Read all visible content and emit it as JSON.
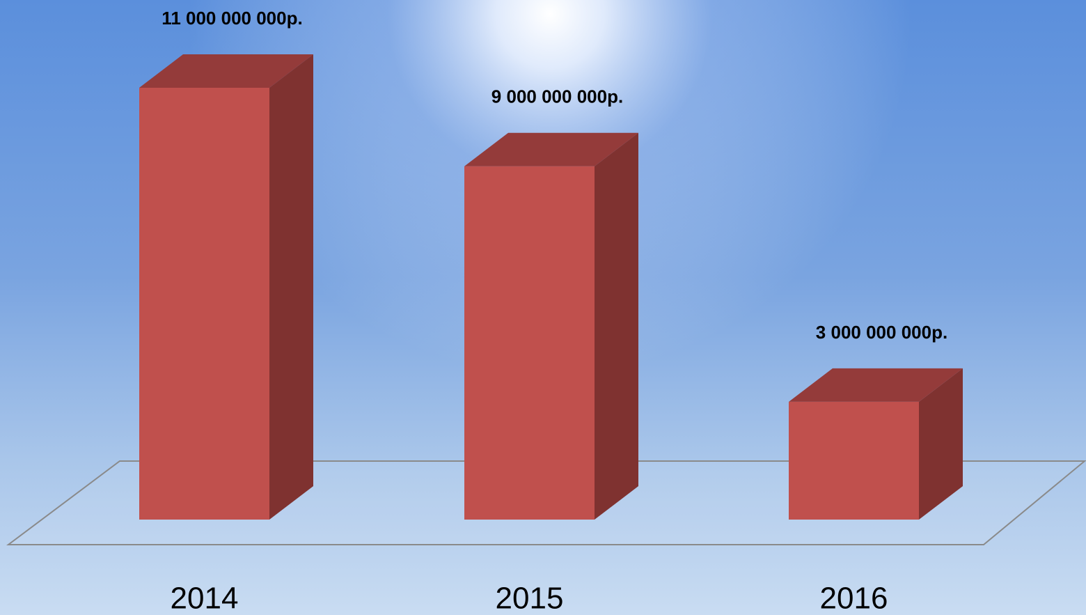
{
  "chart_data": {
    "type": "bar3d",
    "categories": [
      "2014",
      "2015",
      "2016"
    ],
    "values": [
      11000000000,
      9000000000,
      3000000000
    ],
    "value_labels": [
      "11 000 000 000р.",
      "9 000 000 000р.",
      "3 000 000 000р."
    ],
    "color": "#c0504d"
  }
}
